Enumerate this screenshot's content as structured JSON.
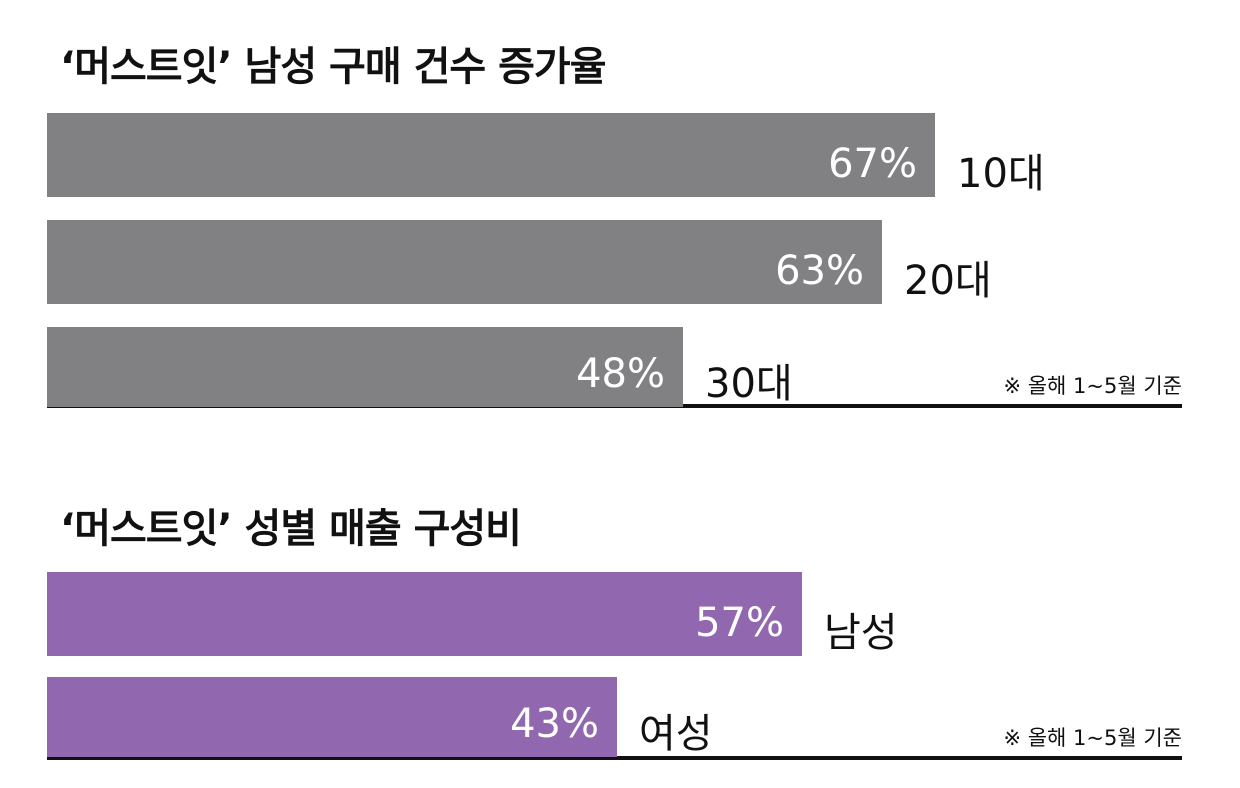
{
  "colors": {
    "gray_bar": "#818184",
    "purple_bar": "#9168af",
    "axis": "#111111"
  },
  "chart_data": [
    {
      "type": "bar",
      "orientation": "horizontal",
      "title": "‘머스트잇’ 남성 구매 건수 증가율",
      "categories": [
        "10대",
        "20대",
        "30대"
      ],
      "values": [
        67,
        63,
        48
      ],
      "value_labels": [
        "67%",
        "63%",
        "48%"
      ],
      "unit": "%",
      "xlim": [
        0,
        100
      ],
      "grid": false,
      "color": "#818184",
      "note": "※ 올해 1~5월 기준"
    },
    {
      "type": "bar",
      "orientation": "horizontal",
      "title": "‘머스트잇’ 성별 매출 구성비",
      "categories": [
        "남성",
        "여성"
      ],
      "values": [
        57,
        43
      ],
      "value_labels": [
        "57%",
        "43%"
      ],
      "unit": "%",
      "xlim": [
        0,
        100
      ],
      "grid": false,
      "color": "#9168af",
      "note": "※ 올해 1~5월 기준"
    }
  ]
}
